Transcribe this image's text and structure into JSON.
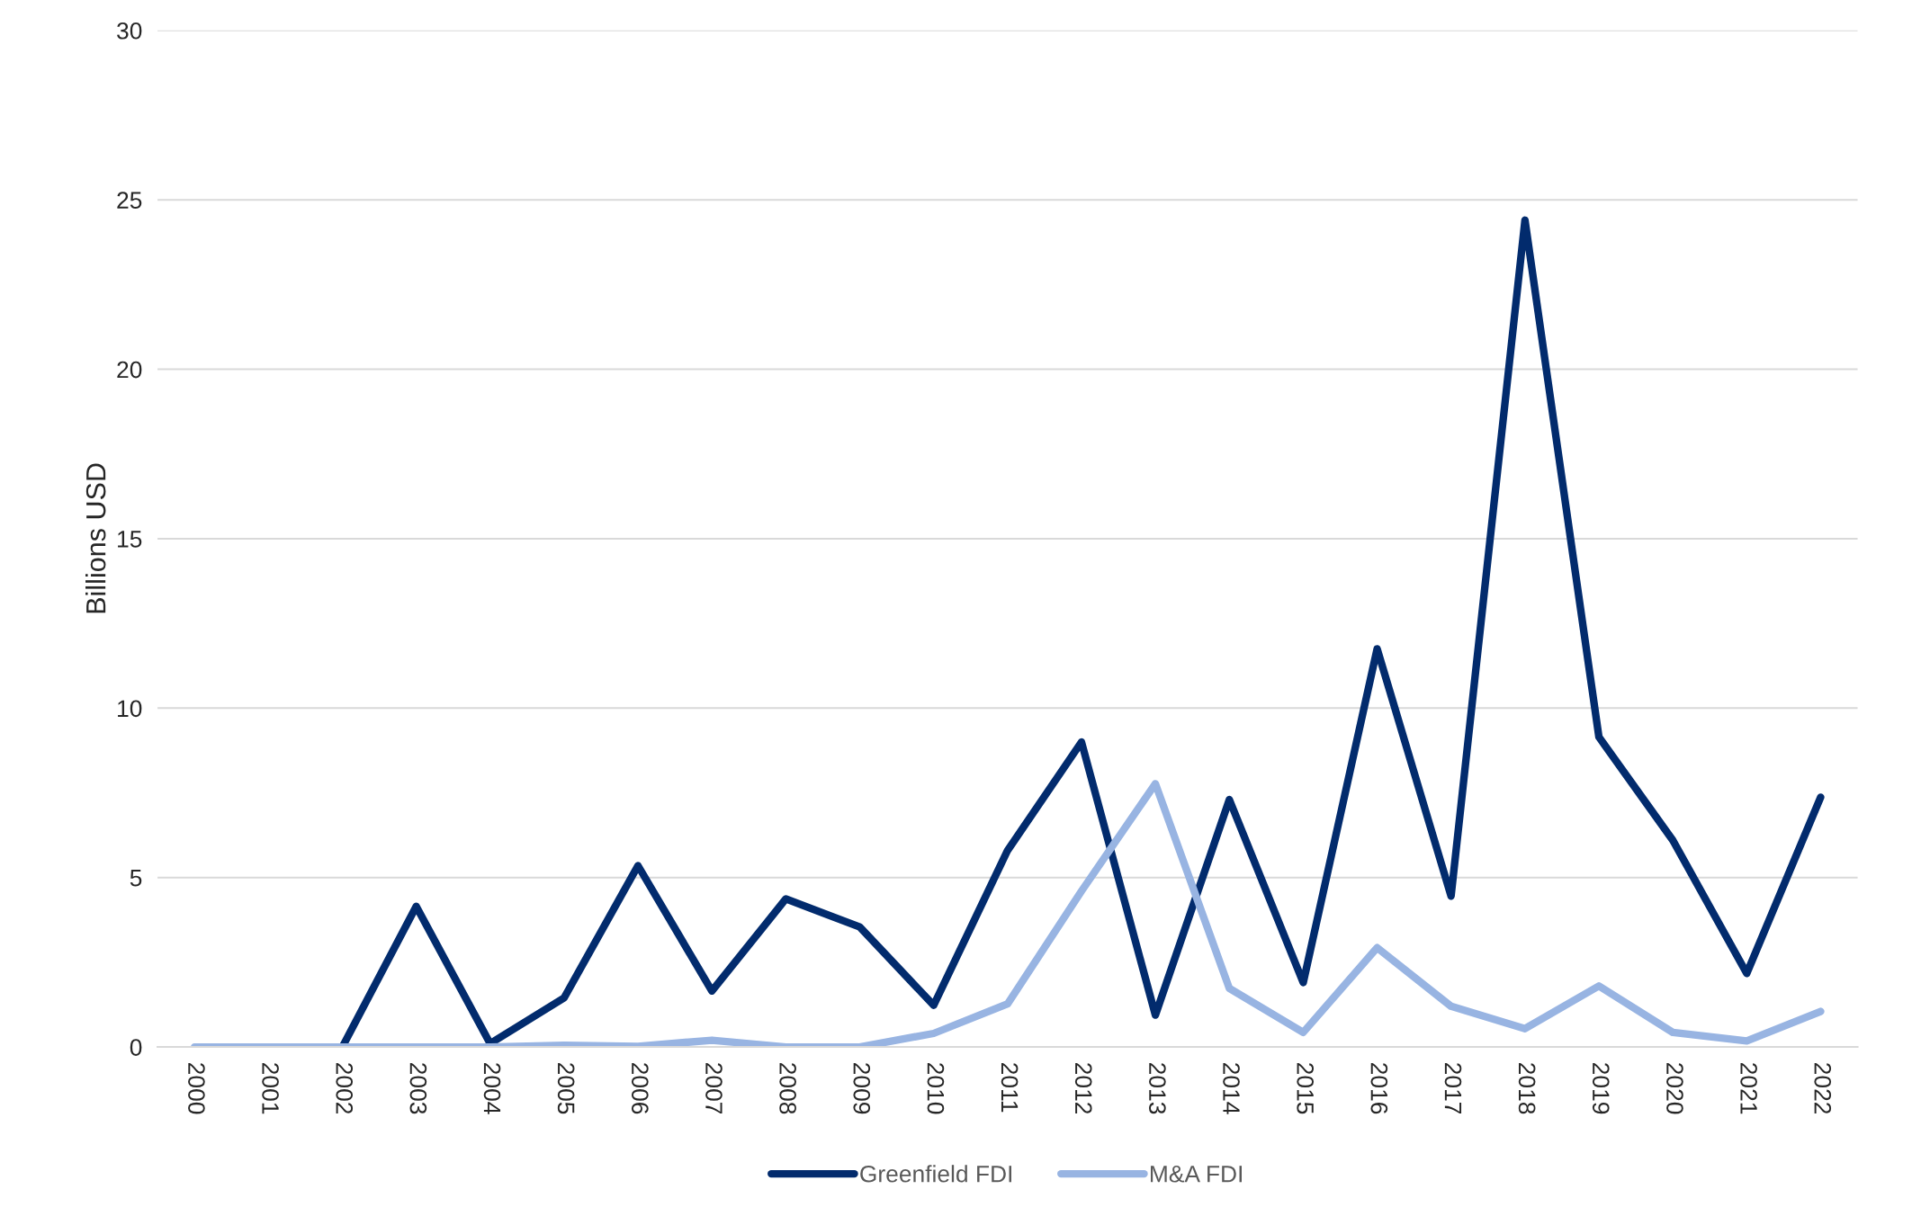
{
  "chart_data": {
    "type": "line",
    "ylabel": "Billions USD",
    "categories": [
      "2000",
      "2001",
      "2002",
      "2003",
      "2004",
      "2005",
      "2006",
      "2007",
      "2008",
      "2009",
      "2010",
      "2011",
      "2012",
      "2013",
      "2014",
      "2015",
      "2016",
      "2017",
      "2018",
      "2019",
      "2020",
      "2021",
      "2022"
    ],
    "series": [
      {
        "name": "Greenfield FDI",
        "color": "#022b6d",
        "values": [
          null,
          null,
          0,
          4.15,
          0.1,
          1.45,
          5.35,
          1.65,
          4.37,
          3.54,
          1.23,
          5.8,
          9.0,
          0.94,
          7.3,
          1.9,
          11.75,
          4.45,
          24.4,
          9.15,
          6.1,
          2.17,
          7.37
        ]
      },
      {
        "name": "M&A FDI",
        "color": "#98b4e2",
        "values": [
          0,
          0,
          0,
          0,
          0,
          0.05,
          0.02,
          0.2,
          0,
          0,
          0.4,
          1.27,
          4.6,
          7.77,
          1.73,
          0.43,
          2.93,
          1.2,
          0.54,
          1.8,
          0.43,
          0.18,
          1.05
        ]
      }
    ],
    "ylim": [
      0,
      30
    ],
    "yticks": [
      0,
      5,
      10,
      15,
      20,
      25,
      30
    ],
    "grid": "y",
    "legend": "bottom",
    "marker": "none",
    "line_style": "solid"
  }
}
